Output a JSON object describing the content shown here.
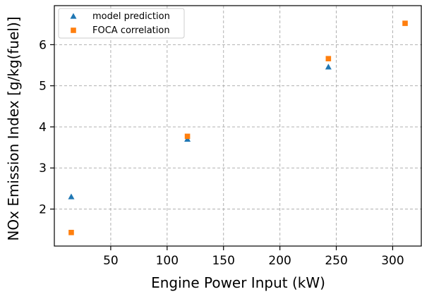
{
  "chart_data": {
    "type": "scatter",
    "xlabel": "Engine Power Input (kW)",
    "ylabel": "NOx Emission Index [g/kg(fuel)]",
    "xlim": [
      0,
      326
    ],
    "ylim": [
      1.1,
      6.95
    ],
    "xticks": [
      50,
      100,
      150,
      200,
      250,
      300
    ],
    "yticks": [
      2,
      3,
      4,
      5,
      6
    ],
    "grid": true,
    "legend_position": "top-left",
    "series": [
      {
        "name": "model prediction",
        "marker": "triangle",
        "color": "#1f77b4",
        "x": [
          15,
          118,
          243
        ],
        "y": [
          2.3,
          3.7,
          5.46
        ]
      },
      {
        "name": "FOCA correlation",
        "marker": "square",
        "color": "#ff7f0e",
        "x": [
          15,
          118,
          243,
          311
        ],
        "y": [
          1.43,
          3.77,
          5.66,
          6.52
        ]
      }
    ]
  }
}
